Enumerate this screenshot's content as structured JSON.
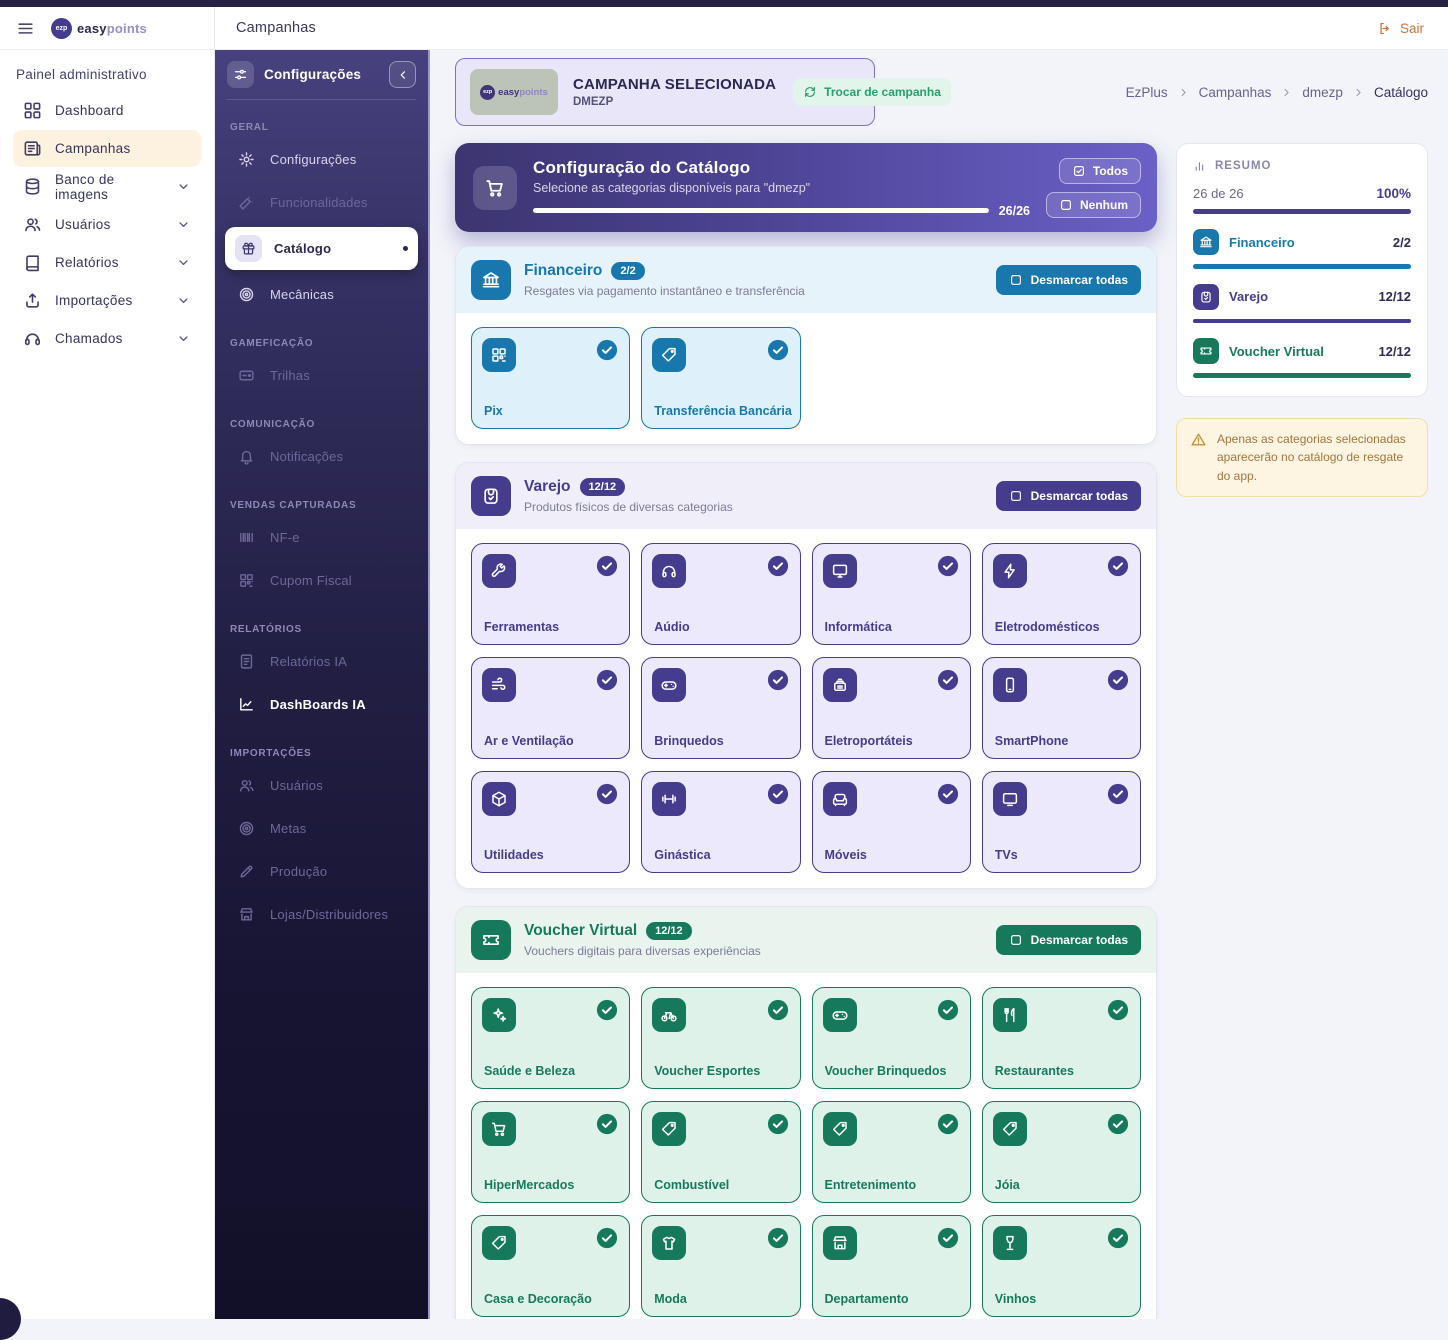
{
  "brand": {
    "badge": "ezp",
    "easy": "easy",
    "points": "points"
  },
  "topbar": {
    "title": "Campanhas",
    "logout_label": "Sair"
  },
  "sidebar": {
    "section_label": "Painel administrativo",
    "items": [
      {
        "label": "Dashboard",
        "icon": "dashboard-icon",
        "active": false,
        "chevron": false
      },
      {
        "label": "Campanhas",
        "icon": "campaigns-icon",
        "active": true,
        "chevron": false
      },
      {
        "label": "Banco de imagens",
        "icon": "image-bank-icon",
        "active": false,
        "chevron": true
      },
      {
        "label": "Usuários",
        "icon": "users-icon",
        "active": false,
        "chevron": true
      },
      {
        "label": "Relatórios",
        "icon": "reports-icon",
        "active": false,
        "chevron": true
      },
      {
        "label": "Importações",
        "icon": "imports-icon",
        "active": false,
        "chevron": true
      },
      {
        "label": "Chamados",
        "icon": "support-icon",
        "active": false,
        "chevron": true
      }
    ]
  },
  "subsidebar": {
    "title": "Configurações",
    "groups": [
      {
        "label": "GERAL",
        "items": [
          {
            "label": "Configurações",
            "icon": "gear-icon",
            "state": "enabled"
          },
          {
            "label": "Funcionalidades",
            "icon": "wand-icon",
            "state": "disabled"
          },
          {
            "label": "Catálogo",
            "icon": "gift-icon",
            "state": "active"
          },
          {
            "label": "Mecânicas",
            "icon": "mechanics-icon",
            "state": "enabled"
          }
        ]
      },
      {
        "label": "GAMEFICAÇÃO",
        "items": [
          {
            "label": "Trilhas",
            "icon": "trails-icon",
            "state": "disabled"
          }
        ]
      },
      {
        "label": "COMUNICAÇÃO",
        "items": [
          {
            "label": "Notificações",
            "icon": "bell-icon",
            "state": "disabled"
          }
        ]
      },
      {
        "label": "VENDAS CAPTURADAS",
        "items": [
          {
            "label": "NF-e",
            "icon": "barcode-icon",
            "state": "disabled"
          },
          {
            "label": "Cupom Fiscal",
            "icon": "qr-icon",
            "state": "disabled"
          }
        ]
      },
      {
        "label": "RELATÓRIOS",
        "items": [
          {
            "label": "Relatórios IA",
            "icon": "doc-icon",
            "state": "disabled"
          },
          {
            "label": "DashBoards IA",
            "icon": "chart-icon",
            "state": "highlight"
          }
        ]
      },
      {
        "label": "IMPORTAÇÕES",
        "items": [
          {
            "label": "Usuários",
            "icon": "users-icon",
            "state": "disabled"
          },
          {
            "label": "Metas",
            "icon": "mechanics-icon",
            "state": "disabled"
          },
          {
            "label": "Produção",
            "icon": "production-icon",
            "state": "disabled"
          },
          {
            "label": "Lojas/Distribuidores",
            "icon": "store-icon",
            "state": "disabled"
          }
        ]
      }
    ]
  },
  "campaign": {
    "selected_label": "CAMPANHA SELECIONADA",
    "name": "DMEZP",
    "switch_label": "Trocar de campanha"
  },
  "breadcrumb": [
    "EzPlus",
    "Campanhas",
    "dmezp",
    "Catálogo"
  ],
  "banner": {
    "title": "Configuração do Catálogo",
    "subtitle": "Selecione as categorias disponíveis para \"dmezp\"",
    "progress_label": "26/26",
    "progress_pct": 100,
    "all_label": "Todos",
    "none_label": "Nenhum"
  },
  "sections": [
    {
      "id": "financeiro",
      "title": "Financeiro",
      "badge": "2/2",
      "subtitle": "Resgates via pagamento instantâneo e transferência",
      "icon": "bank-icon",
      "theme": "blue",
      "unselect_label": "Desmarcar todas",
      "cards": [
        {
          "label": "Pix",
          "icon": "qr-icon"
        },
        {
          "label": "Transferência Bancária",
          "icon": "tag-icon"
        }
      ]
    },
    {
      "id": "varejo",
      "title": "Varejo",
      "badge": "12/12",
      "subtitle": "Produtos físicos de diversas categorias",
      "icon": "bag-icon",
      "theme": "purple",
      "unselect_label": "Desmarcar todas",
      "cards": [
        {
          "label": "Ferramentas",
          "icon": "wrench-icon"
        },
        {
          "label": "Aúdio",
          "icon": "headphones-icon"
        },
        {
          "label": "Informática",
          "icon": "monitor-icon"
        },
        {
          "label": "Eletrodomésticos",
          "icon": "lightning-icon"
        },
        {
          "label": "Ar e Ventilação",
          "icon": "fan-icon"
        },
        {
          "label": "Brinquedos",
          "icon": "controller-icon"
        },
        {
          "label": "Eletroportáteis",
          "icon": "appliance-icon"
        },
        {
          "label": "SmartPhone",
          "icon": "phone-icon"
        },
        {
          "label": "Utilidades",
          "icon": "box-icon"
        },
        {
          "label": "Ginástica",
          "icon": "dumbbell-icon"
        },
        {
          "label": "Móveis",
          "icon": "sofa-icon"
        },
        {
          "label": "TVs",
          "icon": "tv-icon"
        }
      ]
    },
    {
      "id": "voucher-virtual",
      "title": "Voucher Virtual",
      "badge": "12/12",
      "subtitle": "Vouchers digitais para diversas experiências",
      "icon": "ticket-icon",
      "theme": "green",
      "unselect_label": "Desmarcar todas",
      "cards": [
        {
          "label": "Saúde e Beleza",
          "icon": "sparkle-icon"
        },
        {
          "label": "Voucher Esportes",
          "icon": "bike-icon"
        },
        {
          "label": "Voucher Brinquedos",
          "icon": "controller-icon"
        },
        {
          "label": "Restaurantes",
          "icon": "utensils-icon"
        },
        {
          "label": "HiperMercados",
          "icon": "cart-icon"
        },
        {
          "label": "Combustível",
          "icon": "tag-icon"
        },
        {
          "label": "Entretenimento",
          "icon": "tag-icon"
        },
        {
          "label": "Jóia",
          "icon": "tag-icon"
        },
        {
          "label": "Casa e Decoração",
          "icon": "tag-icon"
        },
        {
          "label": "Moda",
          "icon": "shirt-icon"
        },
        {
          "label": "Departamento",
          "icon": "store-icon"
        },
        {
          "label": "Vinhos",
          "icon": "wine-icon"
        }
      ]
    }
  ],
  "summary": {
    "title": "RESUMO",
    "total_label": "26 de 26",
    "total_pct": "100%",
    "rows": [
      {
        "label": "Financeiro",
        "value": "2/2",
        "theme": "blue",
        "icon": "bank-icon"
      },
      {
        "label": "Varejo",
        "value": "12/12",
        "theme": "purple",
        "icon": "bag-icon"
      },
      {
        "label": "Voucher Virtual",
        "value": "12/12",
        "theme": "green",
        "icon": "ticket-icon"
      }
    ]
  },
  "warning": {
    "text": "Apenas as categorias selecionadas aparecerão no catálogo de resgate do app."
  },
  "colors": {
    "financeiro_blue": "#1878ad",
    "varejo_purple": "#453c8e",
    "voucher_green": "#17795c",
    "accent_orange": "#c8763c",
    "warning_amber": "#c3922e",
    "active_cream": "#fdf2e0"
  }
}
